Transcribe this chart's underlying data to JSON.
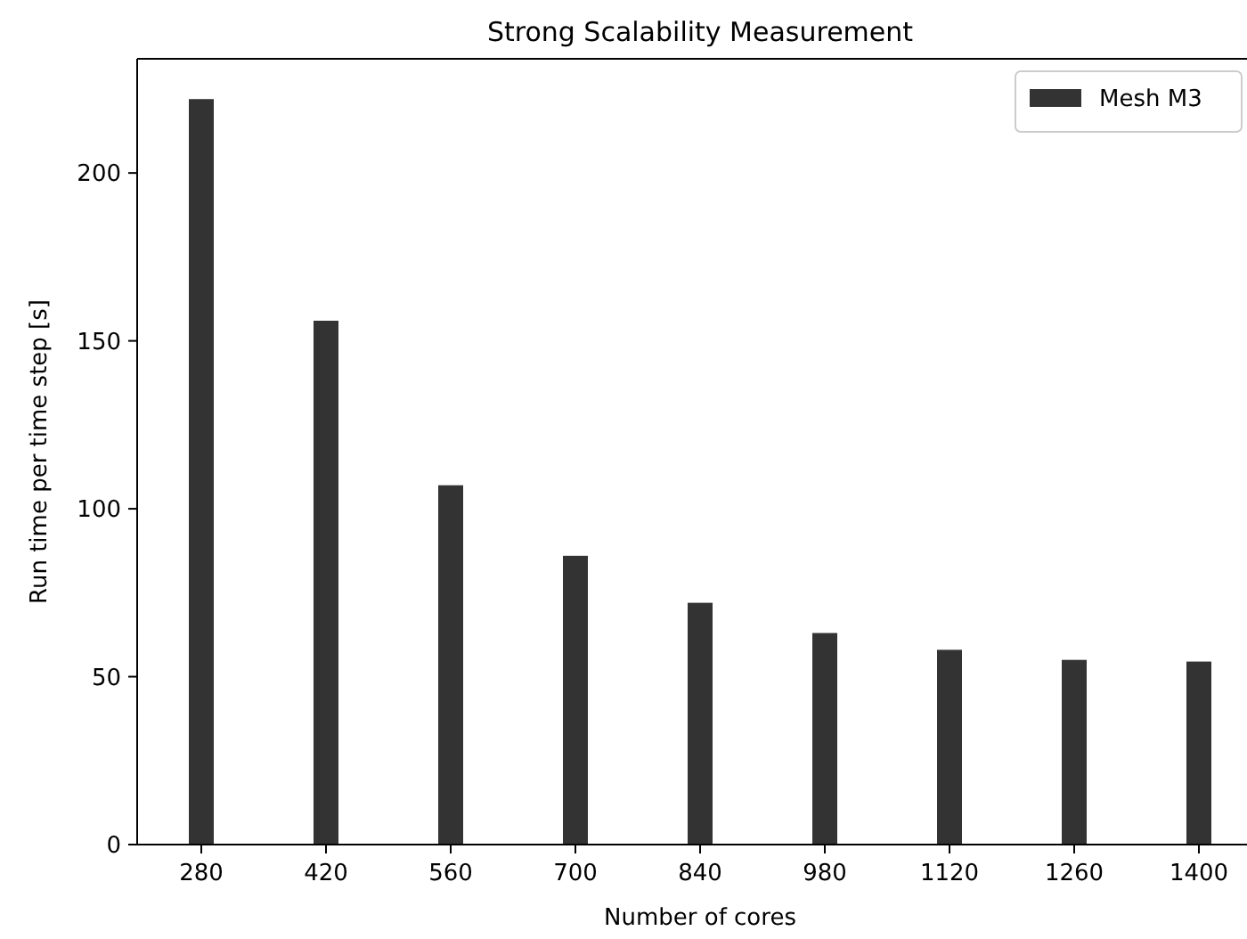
{
  "chart_data": {
    "type": "bar",
    "title": "Strong Scalability Measurement",
    "xlabel": "Number of cores",
    "ylabel": "Run time per time step [s]",
    "categories": [
      "280",
      "420",
      "560",
      "700",
      "840",
      "980",
      "1120",
      "1260",
      "1400"
    ],
    "series": [
      {
        "name": "Mesh M3",
        "color": "#333333",
        "values": [
          222,
          156,
          107,
          86,
          72,
          63,
          58,
          55,
          54.5
        ]
      }
    ],
    "ylim": [
      0,
      234
    ],
    "yticks": [
      0,
      50,
      100,
      150,
      200
    ],
    "legend": "top right"
  }
}
